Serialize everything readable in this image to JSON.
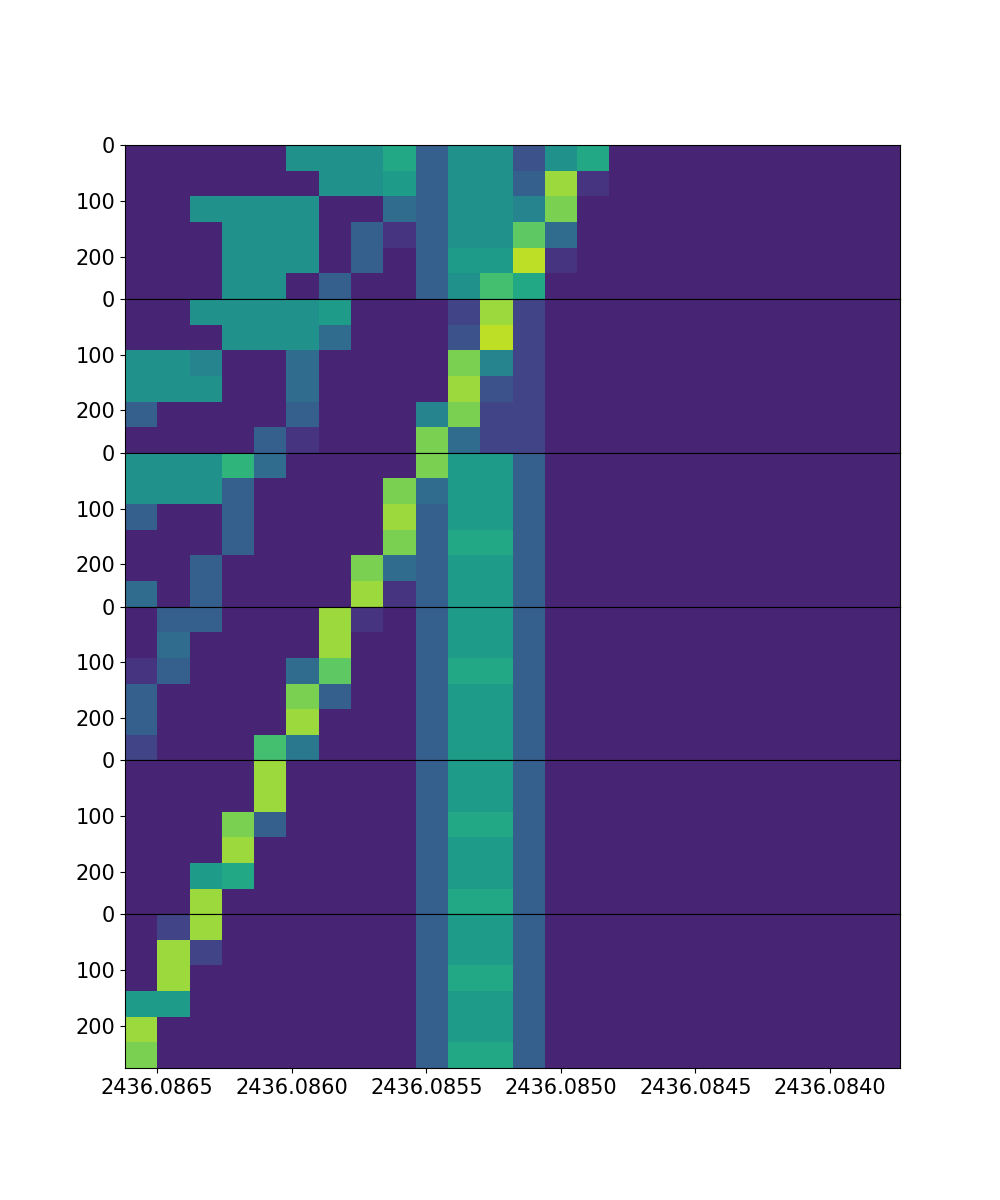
{
  "chart_data": {
    "type": "heatmap",
    "xlim": [
      2436.08662,
      2436.08374
    ],
    "xticks": [
      2436.0865,
      {
        "value": 2436.086,
        "label": "2436.0860"
      },
      2436.0855,
      {
        "value": 2436.085,
        "label": "2436.0850"
      },
      2436.0845,
      {
        "value": 2436.084,
        "label": "2436.0840"
      }
    ],
    "ylim": [
      276,
      0
    ],
    "yticks": [
      0,
      100,
      200
    ],
    "x_edges": [
      2436.08662,
      2436.0865,
      2436.08638,
      2436.08626,
      2436.08614,
      2436.08602,
      2436.0859,
      2436.08578,
      2436.08566,
      2436.08554,
      2436.08542,
      2436.0853,
      2436.08518,
      2436.08506,
      2436.08494,
      2436.08482,
      2436.0847,
      2436.08458,
      2436.08446,
      2436.08434,
      2436.08422,
      2436.0841,
      2436.08398,
      2436.08386,
      2436.08374
    ],
    "y_edges": [
      0,
      46,
      92,
      138,
      184,
      230,
      276
    ],
    "value_range": [
      0,
      1
    ],
    "color": "viridis",
    "panels": [
      {
        "cells": [
          [
            0.1,
            0.1,
            0.1,
            0.1,
            0.1,
            0.5,
            0.5,
            0.5,
            0.6,
            0.3,
            0.5,
            0.5,
            0.25,
            0.5,
            0.6,
            0.1,
            0.1,
            0.1,
            0.1,
            0.1,
            0.1,
            0.1,
            0.1,
            0.1
          ],
          [
            0.1,
            0.1,
            0.1,
            0.1,
            0.1,
            0.1,
            0.5,
            0.5,
            0.55,
            0.3,
            0.5,
            0.5,
            0.3,
            0.85,
            0.15,
            0.1,
            0.1,
            0.1,
            0.1,
            0.1,
            0.1,
            0.1,
            0.1,
            0.1
          ],
          [
            0.1,
            0.1,
            0.5,
            0.5,
            0.5,
            0.5,
            0.1,
            0.1,
            0.35,
            0.3,
            0.5,
            0.5,
            0.45,
            0.8,
            0.1,
            0.1,
            0.1,
            0.1,
            0.1,
            0.1,
            0.1,
            0.1,
            0.1,
            0.1
          ],
          [
            0.1,
            0.1,
            0.1,
            0.5,
            0.5,
            0.5,
            0.1,
            0.3,
            0.15,
            0.3,
            0.5,
            0.5,
            0.75,
            0.35,
            0.1,
            0.1,
            0.1,
            0.1,
            0.1,
            0.1,
            0.1,
            0.1,
            0.1,
            0.1
          ],
          [
            0.1,
            0.1,
            0.1,
            0.5,
            0.5,
            0.5,
            0.1,
            0.3,
            0.1,
            0.3,
            0.55,
            0.55,
            0.9,
            0.15,
            0.1,
            0.1,
            0.1,
            0.1,
            0.1,
            0.1,
            0.1,
            0.1,
            0.1,
            0.1
          ],
          [
            0.1,
            0.1,
            0.1,
            0.5,
            0.5,
            0.1,
            0.3,
            0.1,
            0.1,
            0.3,
            0.5,
            0.7,
            0.6,
            0.1,
            0.1,
            0.1,
            0.1,
            0.1,
            0.1,
            0.1,
            0.1,
            0.1,
            0.1,
            0.1
          ]
        ]
      },
      {
        "cells": [
          [
            0.1,
            0.1,
            0.5,
            0.5,
            0.5,
            0.5,
            0.55,
            0.1,
            0.1,
            0.1,
            0.2,
            0.85,
            0.2,
            0.1,
            0.1,
            0.1,
            0.1,
            0.1,
            0.1,
            0.1,
            0.1,
            0.1,
            0.1,
            0.1
          ],
          [
            0.1,
            0.1,
            0.1,
            0.5,
            0.5,
            0.5,
            0.35,
            0.1,
            0.1,
            0.1,
            0.25,
            0.9,
            0.2,
            0.1,
            0.1,
            0.1,
            0.1,
            0.1,
            0.1,
            0.1,
            0.1,
            0.1,
            0.1,
            0.1
          ],
          [
            0.5,
            0.5,
            0.45,
            0.1,
            0.1,
            0.35,
            0.1,
            0.1,
            0.1,
            0.1,
            0.8,
            0.45,
            0.2,
            0.1,
            0.1,
            0.1,
            0.1,
            0.1,
            0.1,
            0.1,
            0.1,
            0.1,
            0.1,
            0.1
          ],
          [
            0.5,
            0.5,
            0.5,
            0.1,
            0.1,
            0.35,
            0.1,
            0.1,
            0.1,
            0.1,
            0.85,
            0.25,
            0.2,
            0.1,
            0.1,
            0.1,
            0.1,
            0.1,
            0.1,
            0.1,
            0.1,
            0.1,
            0.1,
            0.1
          ],
          [
            0.3,
            0.1,
            0.1,
            0.1,
            0.1,
            0.3,
            0.1,
            0.1,
            0.1,
            0.45,
            0.8,
            0.2,
            0.2,
            0.1,
            0.1,
            0.1,
            0.1,
            0.1,
            0.1,
            0.1,
            0.1,
            0.1,
            0.1,
            0.1
          ],
          [
            0.1,
            0.1,
            0.1,
            0.1,
            0.3,
            0.15,
            0.1,
            0.1,
            0.1,
            0.8,
            0.35,
            0.2,
            0.2,
            0.1,
            0.1,
            0.1,
            0.1,
            0.1,
            0.1,
            0.1,
            0.1,
            0.1,
            0.1,
            0.1
          ]
        ]
      },
      {
        "cells": [
          [
            0.5,
            0.5,
            0.5,
            0.65,
            0.35,
            0.1,
            0.1,
            0.1,
            0.1,
            0.8,
            0.55,
            0.55,
            0.3,
            0.1,
            0.1,
            0.1,
            0.1,
            0.1,
            0.1,
            0.1,
            0.1,
            0.1,
            0.1,
            0.1
          ],
          [
            0.5,
            0.5,
            0.5,
            0.3,
            0.1,
            0.1,
            0.1,
            0.1,
            0.8,
            0.35,
            0.55,
            0.55,
            0.3,
            0.1,
            0.1,
            0.1,
            0.1,
            0.1,
            0.1,
            0.1,
            0.1,
            0.1,
            0.1,
            0.1
          ],
          [
            0.3,
            0.1,
            0.1,
            0.3,
            0.1,
            0.1,
            0.1,
            0.1,
            0.85,
            0.3,
            0.55,
            0.55,
            0.3,
            0.1,
            0.1,
            0.1,
            0.1,
            0.1,
            0.1,
            0.1,
            0.1,
            0.1,
            0.1,
            0.1
          ],
          [
            0.1,
            0.1,
            0.1,
            0.3,
            0.1,
            0.1,
            0.1,
            0.1,
            0.8,
            0.3,
            0.6,
            0.6,
            0.3,
            0.1,
            0.1,
            0.1,
            0.1,
            0.1,
            0.1,
            0.1,
            0.1,
            0.1,
            0.1,
            0.1
          ],
          [
            0.1,
            0.1,
            0.3,
            0.1,
            0.1,
            0.1,
            0.1,
            0.8,
            0.35,
            0.3,
            0.55,
            0.55,
            0.3,
            0.1,
            0.1,
            0.1,
            0.1,
            0.1,
            0.1,
            0.1,
            0.1,
            0.1,
            0.1,
            0.1
          ],
          [
            0.35,
            0.1,
            0.3,
            0.1,
            0.1,
            0.1,
            0.1,
            0.85,
            0.15,
            0.3,
            0.55,
            0.55,
            0.3,
            0.1,
            0.1,
            0.1,
            0.1,
            0.1,
            0.1,
            0.1,
            0.1,
            0.1,
            0.1,
            0.1
          ]
        ]
      },
      {
        "cells": [
          [
            0.1,
            0.3,
            0.3,
            0.1,
            0.1,
            0.1,
            0.85,
            0.15,
            0.1,
            0.3,
            0.55,
            0.55,
            0.3,
            0.1,
            0.1,
            0.1,
            0.1,
            0.1,
            0.1,
            0.1,
            0.1,
            0.1,
            0.1,
            0.1
          ],
          [
            0.1,
            0.35,
            0.1,
            0.1,
            0.1,
            0.1,
            0.85,
            0.1,
            0.1,
            0.3,
            0.55,
            0.55,
            0.3,
            0.1,
            0.1,
            0.1,
            0.1,
            0.1,
            0.1,
            0.1,
            0.1,
            0.1,
            0.1,
            0.1
          ],
          [
            0.15,
            0.3,
            0.1,
            0.1,
            0.1,
            0.35,
            0.75,
            0.1,
            0.1,
            0.3,
            0.6,
            0.6,
            0.3,
            0.1,
            0.1,
            0.1,
            0.1,
            0.1,
            0.1,
            0.1,
            0.1,
            0.1,
            0.1,
            0.1
          ],
          [
            0.3,
            0.1,
            0.1,
            0.1,
            0.1,
            0.8,
            0.3,
            0.1,
            0.1,
            0.3,
            0.55,
            0.55,
            0.3,
            0.1,
            0.1,
            0.1,
            0.1,
            0.1,
            0.1,
            0.1,
            0.1,
            0.1,
            0.1,
            0.1
          ],
          [
            0.3,
            0.1,
            0.1,
            0.1,
            0.1,
            0.85,
            0.1,
            0.1,
            0.1,
            0.3,
            0.55,
            0.55,
            0.3,
            0.1,
            0.1,
            0.1,
            0.1,
            0.1,
            0.1,
            0.1,
            0.1,
            0.1,
            0.1,
            0.1
          ],
          [
            0.2,
            0.1,
            0.1,
            0.1,
            0.7,
            0.4,
            0.1,
            0.1,
            0.1,
            0.3,
            0.55,
            0.55,
            0.3,
            0.1,
            0.1,
            0.1,
            0.1,
            0.1,
            0.1,
            0.1,
            0.1,
            0.1,
            0.1,
            0.1
          ]
        ]
      },
      {
        "cells": [
          [
            0.1,
            0.1,
            0.1,
            0.1,
            0.85,
            0.1,
            0.1,
            0.1,
            0.1,
            0.3,
            0.55,
            0.55,
            0.3,
            0.1,
            0.1,
            0.1,
            0.1,
            0.1,
            0.1,
            0.1,
            0.1,
            0.1,
            0.1,
            0.1
          ],
          [
            0.1,
            0.1,
            0.1,
            0.1,
            0.85,
            0.1,
            0.1,
            0.1,
            0.1,
            0.3,
            0.55,
            0.55,
            0.3,
            0.1,
            0.1,
            0.1,
            0.1,
            0.1,
            0.1,
            0.1,
            0.1,
            0.1,
            0.1,
            0.1
          ],
          [
            0.1,
            0.1,
            0.1,
            0.8,
            0.3,
            0.1,
            0.1,
            0.1,
            0.1,
            0.3,
            0.6,
            0.6,
            0.3,
            0.1,
            0.1,
            0.1,
            0.1,
            0.1,
            0.1,
            0.1,
            0.1,
            0.1,
            0.1,
            0.1
          ],
          [
            0.1,
            0.1,
            0.1,
            0.85,
            0.1,
            0.1,
            0.1,
            0.1,
            0.1,
            0.3,
            0.55,
            0.55,
            0.3,
            0.1,
            0.1,
            0.1,
            0.1,
            0.1,
            0.1,
            0.1,
            0.1,
            0.1,
            0.1,
            0.1
          ],
          [
            0.1,
            0.1,
            0.55,
            0.6,
            0.1,
            0.1,
            0.1,
            0.1,
            0.1,
            0.3,
            0.55,
            0.55,
            0.3,
            0.1,
            0.1,
            0.1,
            0.1,
            0.1,
            0.1,
            0.1,
            0.1,
            0.1,
            0.1,
            0.1
          ],
          [
            0.1,
            0.1,
            0.85,
            0.1,
            0.1,
            0.1,
            0.1,
            0.1,
            0.1,
            0.3,
            0.6,
            0.6,
            0.3,
            0.1,
            0.1,
            0.1,
            0.1,
            0.1,
            0.1,
            0.1,
            0.1,
            0.1,
            0.1,
            0.1
          ]
        ]
      },
      {
        "cells": [
          [
            0.1,
            0.2,
            0.85,
            0.1,
            0.1,
            0.1,
            0.1,
            0.1,
            0.1,
            0.3,
            0.55,
            0.55,
            0.3,
            0.1,
            0.1,
            0.1,
            0.1,
            0.1,
            0.1,
            0.1,
            0.1,
            0.1,
            0.1,
            0.1
          ],
          [
            0.1,
            0.85,
            0.2,
            0.1,
            0.1,
            0.1,
            0.1,
            0.1,
            0.1,
            0.3,
            0.55,
            0.55,
            0.3,
            0.1,
            0.1,
            0.1,
            0.1,
            0.1,
            0.1,
            0.1,
            0.1,
            0.1,
            0.1,
            0.1
          ],
          [
            0.1,
            0.85,
            0.1,
            0.1,
            0.1,
            0.1,
            0.1,
            0.1,
            0.1,
            0.3,
            0.6,
            0.6,
            0.3,
            0.1,
            0.1,
            0.1,
            0.1,
            0.1,
            0.1,
            0.1,
            0.1,
            0.1,
            0.1,
            0.1
          ],
          [
            0.55,
            0.55,
            0.1,
            0.1,
            0.1,
            0.1,
            0.1,
            0.1,
            0.1,
            0.3,
            0.55,
            0.55,
            0.3,
            0.1,
            0.1,
            0.1,
            0.1,
            0.1,
            0.1,
            0.1,
            0.1,
            0.1,
            0.1,
            0.1
          ],
          [
            0.85,
            0.1,
            0.1,
            0.1,
            0.1,
            0.1,
            0.1,
            0.1,
            0.1,
            0.3,
            0.55,
            0.55,
            0.3,
            0.1,
            0.1,
            0.1,
            0.1,
            0.1,
            0.1,
            0.1,
            0.1,
            0.1,
            0.1,
            0.1
          ],
          [
            0.8,
            0.1,
            0.1,
            0.1,
            0.1,
            0.1,
            0.1,
            0.1,
            0.1,
            0.3,
            0.6,
            0.6,
            0.3,
            0.1,
            0.1,
            0.1,
            0.1,
            0.1,
            0.1,
            0.1,
            0.1,
            0.1,
            0.1,
            0.1
          ]
        ]
      }
    ]
  }
}
